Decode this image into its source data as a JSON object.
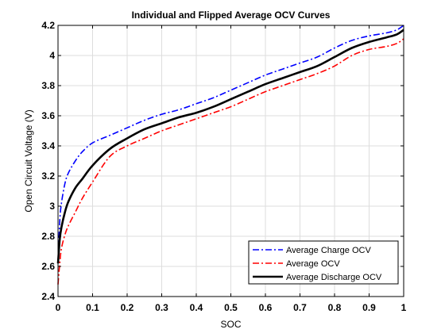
{
  "chart_data": {
    "type": "line",
    "title": "Individual and Flipped Average OCV Curves",
    "xlabel": "SOC",
    "ylabel": "Open Circuit Voltage (V)",
    "xlim": [
      0,
      1
    ],
    "ylim": [
      2.4,
      4.2
    ],
    "x_ticks": [
      0,
      0.1,
      0.2,
      0.3,
      0.4,
      0.5,
      0.6,
      0.7,
      0.8,
      0.9,
      1
    ],
    "x_tick_labels": [
      "0",
      "0.1",
      "0.2",
      "0.3",
      "0.4",
      "0.5",
      "0.6",
      "0.7",
      "0.8",
      "0.9",
      "1"
    ],
    "y_ticks": [
      2.4,
      2.6,
      2.8,
      3.0,
      3.2,
      3.4,
      3.6,
      3.8,
      4.0,
      4.2
    ],
    "y_tick_labels": [
      "2.4",
      "2.6",
      "2.8",
      "3",
      "3.2",
      "3.4",
      "3.6",
      "3.8",
      "4",
      "4.2"
    ],
    "grid": true,
    "legend_position": "bottom-right",
    "series": [
      {
        "name": "Average Charge OCV",
        "color": "#0000ff",
        "style": "dash-dot",
        "x": [
          0,
          0.005,
          0.01,
          0.02,
          0.03,
          0.05,
          0.07,
          0.1,
          0.15,
          0.2,
          0.25,
          0.3,
          0.35,
          0.4,
          0.45,
          0.5,
          0.55,
          0.6,
          0.65,
          0.7,
          0.75,
          0.8,
          0.85,
          0.9,
          0.95,
          0.98,
          1.0
        ],
        "y": [
          2.62,
          2.9,
          3.02,
          3.15,
          3.22,
          3.3,
          3.36,
          3.42,
          3.47,
          3.52,
          3.57,
          3.61,
          3.64,
          3.68,
          3.72,
          3.77,
          3.82,
          3.87,
          3.91,
          3.95,
          3.99,
          4.05,
          4.1,
          4.13,
          4.15,
          4.17,
          4.2
        ]
      },
      {
        "name": "Average OCV",
        "color": "#ff0000",
        "style": "dash-dot",
        "x": [
          0,
          0.005,
          0.01,
          0.02,
          0.03,
          0.05,
          0.07,
          0.1,
          0.15,
          0.2,
          0.25,
          0.3,
          0.35,
          0.4,
          0.45,
          0.5,
          0.55,
          0.6,
          0.65,
          0.7,
          0.75,
          0.8,
          0.85,
          0.9,
          0.95,
          0.98,
          1.0
        ],
        "y": [
          2.48,
          2.62,
          2.72,
          2.81,
          2.87,
          2.96,
          3.05,
          3.16,
          3.33,
          3.4,
          3.45,
          3.5,
          3.54,
          3.58,
          3.62,
          3.66,
          3.71,
          3.76,
          3.8,
          3.84,
          3.88,
          3.93,
          4.0,
          4.04,
          4.06,
          4.08,
          4.11
        ]
      },
      {
        "name": "Average Discharge OCV",
        "color": "#000000",
        "style": "solid",
        "x": [
          0,
          0.005,
          0.01,
          0.02,
          0.03,
          0.05,
          0.07,
          0.1,
          0.15,
          0.2,
          0.25,
          0.3,
          0.35,
          0.4,
          0.45,
          0.5,
          0.55,
          0.6,
          0.65,
          0.7,
          0.75,
          0.8,
          0.85,
          0.9,
          0.95,
          0.98,
          1.0
        ],
        "y": [
          2.62,
          2.78,
          2.86,
          2.96,
          3.03,
          3.12,
          3.18,
          3.27,
          3.38,
          3.45,
          3.51,
          3.55,
          3.59,
          3.62,
          3.66,
          3.71,
          3.76,
          3.81,
          3.85,
          3.89,
          3.93,
          3.99,
          4.05,
          4.09,
          4.12,
          4.14,
          4.17
        ]
      }
    ]
  }
}
